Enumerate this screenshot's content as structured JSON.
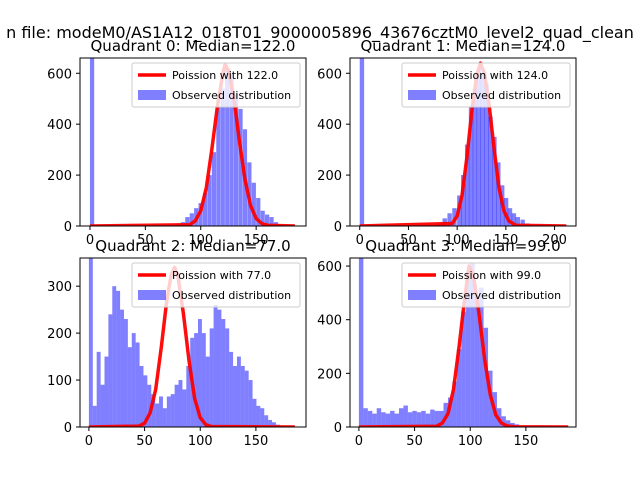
{
  "figure": {
    "suptitle": "n file: modeM0/AS1A12_018T01_9000005896_43676cztM0_level2_quad_clean",
    "colors": {
      "hist": "#0000ff",
      "hist_opacity": 0.5,
      "fit": "#ff0000",
      "axes": "#000000",
      "legend_edge": "#cccccc"
    }
  },
  "chart_data": [
    {
      "type": "histogram",
      "title": "Quadrant 0: Median=122.0",
      "xlim": [
        -9,
        195
      ],
      "ylim": [
        0,
        660
      ],
      "xticks": [
        0,
        50,
        100,
        150
      ],
      "yticks": [
        0,
        200,
        400,
        600
      ],
      "legend_position": "upper right",
      "bin_width": 3.8,
      "series": [
        {
          "name": "Poission with 122.0",
          "kind": "line",
          "mean": 122.0,
          "peak": 635,
          "x": [
            0,
            90,
            95,
            100,
            105,
            110,
            115,
            120,
            122,
            125,
            130,
            135,
            140,
            145,
            150,
            155,
            160,
            185
          ],
          "y": [
            0,
            5,
            20,
            60,
            150,
            300,
            470,
            600,
            635,
            610,
            500,
            330,
            180,
            80,
            30,
            10,
            3,
            0
          ]
        },
        {
          "name": "Observed distribution",
          "kind": "bars",
          "x": [
            0,
            70,
            74,
            78,
            82,
            86,
            90,
            94,
            98,
            102,
            106,
            110,
            114,
            118,
            122,
            126,
            130,
            134,
            138,
            142,
            146,
            150,
            154,
            158,
            162,
            166,
            170
          ],
          "y": [
            660,
            3,
            5,
            10,
            15,
            35,
            50,
            70,
            90,
            130,
            200,
            290,
            470,
            540,
            620,
            600,
            520,
            460,
            380,
            250,
            170,
            110,
            60,
            45,
            35,
            15,
            5
          ]
        }
      ]
    },
    {
      "type": "histogram",
      "title": "Quadrant 1: Median=124.0",
      "xlim": [
        -10,
        222
      ],
      "ylim": [
        0,
        660
      ],
      "xticks": [
        0,
        50,
        100,
        150,
        200
      ],
      "yticks": [
        0,
        200,
        400,
        600
      ],
      "legend_position": "upper right",
      "bin_width": 4.5,
      "series": [
        {
          "name": "Poission with 124.0",
          "kind": "line",
          "mean": 124.0,
          "peak": 640,
          "x": [
            0,
            95,
            100,
            105,
            110,
            115,
            120,
            124,
            128,
            133,
            138,
            143,
            148,
            153,
            160,
            212
          ],
          "y": [
            0,
            10,
            40,
            120,
            270,
            450,
            590,
            640,
            600,
            470,
            300,
            150,
            60,
            20,
            3,
            0
          ]
        },
        {
          "name": "Observed distribution",
          "kind": "bars",
          "x": [
            0,
            75,
            80,
            85,
            90,
            95,
            100,
            104,
            108,
            112,
            116,
            120,
            124,
            128,
            132,
            136,
            140,
            144,
            148,
            152,
            156,
            160,
            165,
            170,
            175
          ],
          "y": [
            660,
            3,
            10,
            30,
            50,
            70,
            120,
            200,
            320,
            470,
            540,
            620,
            600,
            560,
            430,
            350,
            250,
            160,
            110,
            70,
            50,
            35,
            25,
            10,
            5
          ]
        }
      ]
    },
    {
      "type": "histogram",
      "title": "Quadrant 2: Median=77.0",
      "xlim": [
        -8,
        195
      ],
      "ylim": [
        0,
        360
      ],
      "xticks": [
        0,
        50,
        100,
        150
      ],
      "yticks": [
        0,
        100,
        200,
        300
      ],
      "legend_position": "upper right",
      "bin_width": 3.5,
      "series": [
        {
          "name": "Poission with 77.0",
          "kind": "line",
          "mean": 77.0,
          "peak": 340,
          "x": [
            0,
            45,
            50,
            55,
            60,
            65,
            70,
            74,
            77,
            80,
            85,
            90,
            95,
            100,
            105,
            110,
            185
          ],
          "y": [
            0,
            2,
            8,
            30,
            80,
            170,
            270,
            325,
            340,
            320,
            240,
            140,
            60,
            20,
            5,
            1,
            0
          ]
        },
        {
          "name": "Observed distribution",
          "kind": "bars",
          "x": [
            0,
            3.5,
            7,
            10.5,
            14,
            17.5,
            21,
            24.5,
            28,
            31.5,
            35,
            38.5,
            42,
            45.5,
            49,
            52.5,
            56,
            59.5,
            63,
            66.5,
            70,
            73.5,
            77,
            80.5,
            84,
            87.5,
            91,
            94.5,
            98,
            101.5,
            105,
            108.5,
            112,
            115.5,
            119,
            122.5,
            126,
            129.5,
            133,
            136.5,
            140,
            143.5,
            147,
            150.5,
            154,
            157.5,
            161,
            164.5,
            168
          ],
          "y": [
            360,
            45,
            160,
            90,
            150,
            240,
            300,
            290,
            250,
            230,
            170,
            200,
            180,
            130,
            110,
            90,
            70,
            50,
            65,
            40,
            65,
            70,
            90,
            100,
            80,
            130,
            190,
            200,
            230,
            200,
            150,
            210,
            260,
            250,
            230,
            210,
            160,
            130,
            150,
            130,
            120,
            100,
            60,
            45,
            40,
            25,
            15,
            10,
            5
          ]
        }
      ]
    },
    {
      "type": "histogram",
      "title": "Quadrant 3: Median=99.0",
      "xlim": [
        -8,
        195
      ],
      "ylim": [
        0,
        630
      ],
      "xticks": [
        0,
        50,
        100,
        150
      ],
      "yticks": [
        0,
        200,
        400,
        600
      ],
      "legend_position": "upper right",
      "bin_width": 4.0,
      "series": [
        {
          "name": "Poission with 99.0",
          "kind": "line",
          "mean": 99.0,
          "peak": 600,
          "x": [
            0,
            70,
            75,
            80,
            85,
            90,
            95,
            99,
            103,
            108,
            113,
            118,
            123,
            128,
            133,
            140,
            188
          ],
          "y": [
            0,
            3,
            15,
            50,
            140,
            300,
            480,
            600,
            560,
            420,
            250,
            120,
            45,
            15,
            4,
            1,
            0
          ]
        },
        {
          "name": "Observed distribution",
          "kind": "bars",
          "x": [
            0,
            4,
            8,
            12,
            16,
            20,
            24,
            28,
            32,
            36,
            40,
            44,
            48,
            52,
            56,
            60,
            64,
            68,
            72,
            76,
            80,
            84,
            88,
            92,
            96,
            100,
            104,
            108,
            112,
            116,
            120,
            124,
            128,
            132,
            136,
            140,
            144,
            148,
            152,
            156,
            160
          ],
          "y": [
            630,
            70,
            60,
            50,
            70,
            55,
            50,
            60,
            50,
            70,
            80,
            55,
            60,
            55,
            60,
            50,
            65,
            60,
            60,
            90,
            110,
            170,
            290,
            430,
            580,
            610,
            480,
            520,
            370,
            210,
            130,
            70,
            40,
            25,
            15,
            10,
            5,
            5,
            3,
            2,
            0
          ]
        }
      ]
    }
  ]
}
